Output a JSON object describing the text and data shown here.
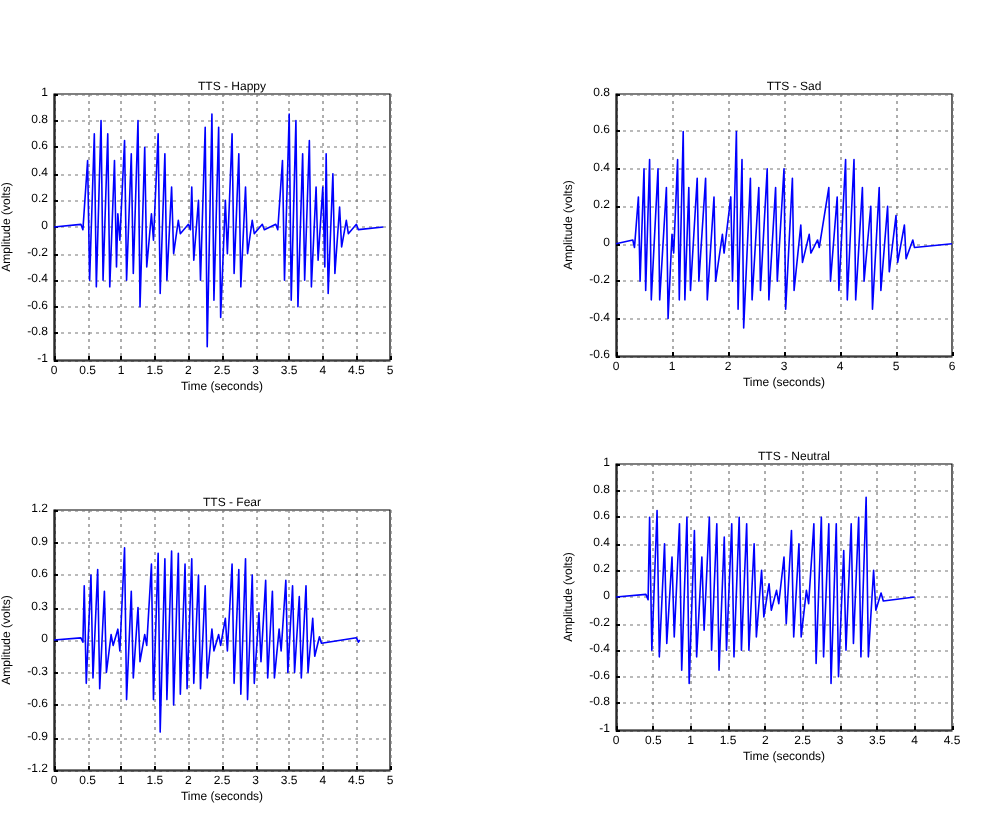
{
  "chart_data": [
    {
      "type": "line",
      "title": "TTS - Happy",
      "xlabel": "Time (seconds)",
      "ylabel": "Amplitude (volts)",
      "xlim": [
        0,
        5
      ],
      "ylim": [
        -1,
        1
      ],
      "xticks": [
        0,
        0.5,
        1,
        1.5,
        2,
        2.5,
        3,
        3.5,
        4,
        4.5,
        5
      ],
      "yticks": [
        -1,
        -0.8,
        -0.6,
        -0.4,
        -0.2,
        0,
        0.2,
        0.4,
        0.6,
        0.8,
        1
      ],
      "grid": true,
      "marker": "none",
      "series": [
        {
          "color": "#0000ff",
          "x": [
            0,
            0.4,
            0.43,
            0.5,
            0.53,
            0.6,
            0.63,
            0.7,
            0.73,
            0.8,
            0.83,
            0.9,
            0.93,
            0.95,
            0.98,
            1.05,
            1.08,
            1.15,
            1.18,
            1.25,
            1.28,
            1.35,
            1.38,
            1.45,
            1.48,
            1.55,
            1.58,
            1.65,
            1.68,
            1.75,
            1.78,
            1.85,
            1.88,
            2.0,
            2.03,
            2.05,
            2.08,
            2.15,
            2.18,
            2.25,
            2.28,
            2.35,
            2.38,
            2.45,
            2.48,
            2.55,
            2.58,
            2.65,
            2.68,
            2.75,
            2.78,
            2.85,
            2.88,
            2.95,
            2.98,
            3.1,
            3.13,
            3.3,
            3.33,
            3.4,
            3.43,
            3.5,
            3.53,
            3.6,
            3.63,
            3.7,
            3.73,
            3.8,
            3.83,
            3.9,
            3.93,
            4.0,
            4.03,
            4.05,
            4.08,
            4.15,
            4.18,
            4.25,
            4.28,
            4.35,
            4.38,
            4.5,
            4.53,
            4.9
          ],
          "values": [
            0,
            0.02,
            -0.02,
            0.5,
            -0.4,
            0.7,
            -0.45,
            0.8,
            -0.4,
            0.7,
            -0.45,
            0.5,
            -0.3,
            0.1,
            -0.1,
            0.65,
            -0.4,
            0.55,
            -0.35,
            0.8,
            -0.6,
            0.6,
            -0.3,
            0.1,
            -0.1,
            0.7,
            -0.5,
            0.55,
            -0.4,
            0.3,
            -0.2,
            0.05,
            -0.05,
            0.02,
            -0.02,
            0.3,
            -0.25,
            0.2,
            -0.4,
            0.75,
            -0.9,
            0.85,
            -0.55,
            0.75,
            -0.68,
            0.2,
            -0.2,
            0.7,
            -0.35,
            0.55,
            -0.45,
            0.3,
            -0.2,
            0.05,
            -0.05,
            0.02,
            -0.02,
            0.02,
            -0.02,
            0.5,
            -0.4,
            0.85,
            -0.55,
            0.8,
            -0.6,
            0.55,
            -0.4,
            0.65,
            -0.45,
            0.3,
            -0.25,
            0.3,
            -0.3,
            0.55,
            -0.5,
            0.4,
            -0.35,
            0.15,
            -0.15,
            0.05,
            -0.05,
            0.02,
            -0.02,
            0
          ]
        }
      ]
    },
    {
      "type": "line",
      "title": "TTS - Sad",
      "xlabel": "Time (seconds)",
      "ylabel": "Amplitude (volts)",
      "xlim": [
        0,
        6
      ],
      "ylim": [
        -0.6,
        0.8
      ],
      "xticks": [
        0,
        1,
        2,
        3,
        4,
        5,
        6
      ],
      "yticks": [
        -0.6,
        -0.4,
        -0.2,
        0,
        0.2,
        0.4,
        0.6,
        0.8
      ],
      "grid": true,
      "marker": "none",
      "series": [
        {
          "color": "#0000ff",
          "x": [
            0,
            0.3,
            0.33,
            0.4,
            0.43,
            0.5,
            0.53,
            0.6,
            0.63,
            0.75,
            0.78,
            0.9,
            0.93,
            1.0,
            1.03,
            1.1,
            1.13,
            1.2,
            1.23,
            1.3,
            1.33,
            1.45,
            1.48,
            1.6,
            1.63,
            1.75,
            1.78,
            1.9,
            1.93,
            2.05,
            2.08,
            2.15,
            2.18,
            2.25,
            2.28,
            2.4,
            2.43,
            2.55,
            2.58,
            2.7,
            2.73,
            2.85,
            2.88,
            3.0,
            3.03,
            3.15,
            3.18,
            3.3,
            3.33,
            3.45,
            3.48,
            3.6,
            3.63,
            3.8,
            3.83,
            3.95,
            3.98,
            4.1,
            4.13,
            4.25,
            4.28,
            4.4,
            4.43,
            4.55,
            4.58,
            4.7,
            4.73,
            4.85,
            4.88,
            5.0,
            5.03,
            5.15,
            5.18,
            5.3,
            5.33,
            6
          ],
          "values": [
            0,
            0.02,
            -0.02,
            0.25,
            -0.2,
            0.4,
            -0.25,
            0.45,
            -0.3,
            0.4,
            -0.3,
            0.3,
            -0.4,
            0.05,
            -0.05,
            0.45,
            -0.3,
            0.6,
            -0.3,
            0.3,
            -0.25,
            0.35,
            -0.2,
            0.35,
            -0.3,
            0.25,
            -0.2,
            0.05,
            -0.05,
            0.25,
            -0.2,
            0.6,
            -0.35,
            0.45,
            -0.45,
            0.35,
            -0.3,
            0.3,
            -0.25,
            0.4,
            -0.3,
            0.3,
            -0.2,
            0.4,
            -0.35,
            0.35,
            -0.25,
            0.1,
            -0.1,
            0.05,
            -0.05,
            0.02,
            -0.02,
            0.3,
            -0.2,
            0.25,
            -0.25,
            0.45,
            -0.3,
            0.45,
            -0.3,
            0.3,
            -0.2,
            0.2,
            -0.35,
            0.3,
            -0.25,
            0.2,
            -0.15,
            0.15,
            -0.1,
            0.1,
            -0.08,
            0.02,
            -0.02,
            0
          ]
        }
      ]
    },
    {
      "type": "line",
      "title": "TTS - Fear",
      "xlabel": "Time (seconds)",
      "ylabel": "Amplitude (volts)",
      "xlim": [
        0,
        5
      ],
      "ylim": [
        -1.2,
        1.2
      ],
      "xticks": [
        0,
        0.5,
        1,
        1.5,
        2,
        2.5,
        3,
        3.5,
        4,
        4.5,
        5
      ],
      "yticks": [
        -1.2,
        -0.9,
        -0.6,
        -0.3,
        0,
        0.3,
        0.6,
        0.9,
        1.2
      ],
      "grid": true,
      "marker": "none",
      "series": [
        {
          "color": "#0000ff",
          "x": [
            0,
            0.4,
            0.43,
            0.45,
            0.48,
            0.55,
            0.58,
            0.65,
            0.68,
            0.75,
            0.78,
            0.85,
            0.88,
            0.95,
            0.98,
            1.05,
            1.08,
            1.15,
            1.18,
            1.25,
            1.28,
            1.35,
            1.38,
            1.45,
            1.48,
            1.55,
            1.58,
            1.65,
            1.68,
            1.75,
            1.78,
            1.85,
            1.88,
            1.95,
            1.98,
            2.05,
            2.08,
            2.15,
            2.18,
            2.25,
            2.28,
            2.35,
            2.38,
            2.45,
            2.48,
            2.55,
            2.58,
            2.65,
            2.68,
            2.75,
            2.78,
            2.85,
            2.88,
            2.95,
            2.98,
            3.05,
            3.08,
            3.15,
            3.18,
            3.25,
            3.28,
            3.35,
            3.38,
            3.45,
            3.48,
            3.55,
            3.58,
            3.65,
            3.68,
            3.75,
            3.78,
            3.85,
            3.88,
            3.95,
            3.98,
            4.5,
            4.53,
            4.55
          ],
          "values": [
            0,
            0.02,
            -0.02,
            0.5,
            -0.4,
            0.6,
            -0.35,
            0.65,
            -0.45,
            0.45,
            -0.3,
            0.05,
            -0.05,
            0.1,
            -0.1,
            0.85,
            -0.55,
            0.45,
            -0.35,
            0.3,
            -0.2,
            0.05,
            -0.05,
            0.7,
            -0.55,
            0.8,
            -0.85,
            0.75,
            -0.55,
            0.82,
            -0.6,
            0.8,
            -0.5,
            0.7,
            -0.45,
            0.75,
            -0.4,
            0.6,
            -0.45,
            0.5,
            -0.35,
            0.1,
            -0.1,
            0.05,
            -0.05,
            0.2,
            -0.1,
            0.7,
            -0.4,
            0.65,
            -0.5,
            0.75,
            -0.55,
            0.6,
            -0.4,
            0.25,
            -0.2,
            0.55,
            -0.35,
            0.45,
            -0.35,
            0.1,
            -0.1,
            0.55,
            -0.3,
            0.5,
            -0.3,
            0.4,
            -0.35,
            0.5,
            -0.3,
            0.2,
            -0.15,
            0.03,
            -0.03,
            0.02,
            -0.02,
            0
          ]
        }
      ]
    },
    {
      "type": "line",
      "title": "TTS - Neutral",
      "xlabel": "Time (seconds)",
      "ylabel": "Amplitude (volts)",
      "xlim": [
        0,
        4.5
      ],
      "ylim": [
        -1,
        1
      ],
      "xticks": [
        0,
        0.5,
        1,
        1.5,
        2,
        2.5,
        3,
        3.5,
        4,
        4.5
      ],
      "yticks": [
        -1,
        -0.8,
        -0.6,
        -0.4,
        -0.2,
        0,
        0.2,
        0.4,
        0.6,
        0.8,
        1
      ],
      "grid": true,
      "marker": "none",
      "series": [
        {
          "color": "#0000ff",
          "x": [
            0,
            0.4,
            0.43,
            0.45,
            0.48,
            0.55,
            0.58,
            0.65,
            0.68,
            0.75,
            0.78,
            0.85,
            0.88,
            0.95,
            0.98,
            1.05,
            1.08,
            1.15,
            1.18,
            1.25,
            1.28,
            1.35,
            1.38,
            1.45,
            1.48,
            1.55,
            1.58,
            1.65,
            1.68,
            1.75,
            1.78,
            1.85,
            1.88,
            1.95,
            1.98,
            2.05,
            2.08,
            2.15,
            2.18,
            2.25,
            2.28,
            2.35,
            2.38,
            2.45,
            2.48,
            2.55,
            2.58,
            2.65,
            2.68,
            2.75,
            2.78,
            2.85,
            2.88,
            2.95,
            2.98,
            3.05,
            3.08,
            3.15,
            3.18,
            3.25,
            3.28,
            3.35,
            3.38,
            3.45,
            3.48,
            3.55,
            3.58,
            4.0
          ],
          "values": [
            0,
            0.02,
            -0.02,
            0.6,
            -0.4,
            0.65,
            -0.45,
            0.4,
            -0.35,
            0.3,
            -0.3,
            0.55,
            -0.55,
            0.6,
            -0.65,
            0.5,
            -0.45,
            0.3,
            -0.25,
            0.6,
            -0.4,
            0.55,
            -0.55,
            0.45,
            -0.4,
            0.55,
            -0.45,
            0.6,
            -0.4,
            0.55,
            -0.4,
            0.4,
            -0.3,
            0.2,
            -0.15,
            0.1,
            -0.1,
            0.05,
            -0.05,
            0.3,
            -0.2,
            0.5,
            -0.3,
            0.4,
            -0.3,
            0.05,
            -0.05,
            0.55,
            -0.5,
            0.6,
            -0.45,
            0.55,
            -0.65,
            0.55,
            -0.6,
            0.35,
            -0.4,
            0.55,
            -0.35,
            0.6,
            -0.45,
            0.75,
            -0.45,
            0.2,
            -0.1,
            0.03,
            -0.03,
            0
          ]
        }
      ]
    }
  ]
}
